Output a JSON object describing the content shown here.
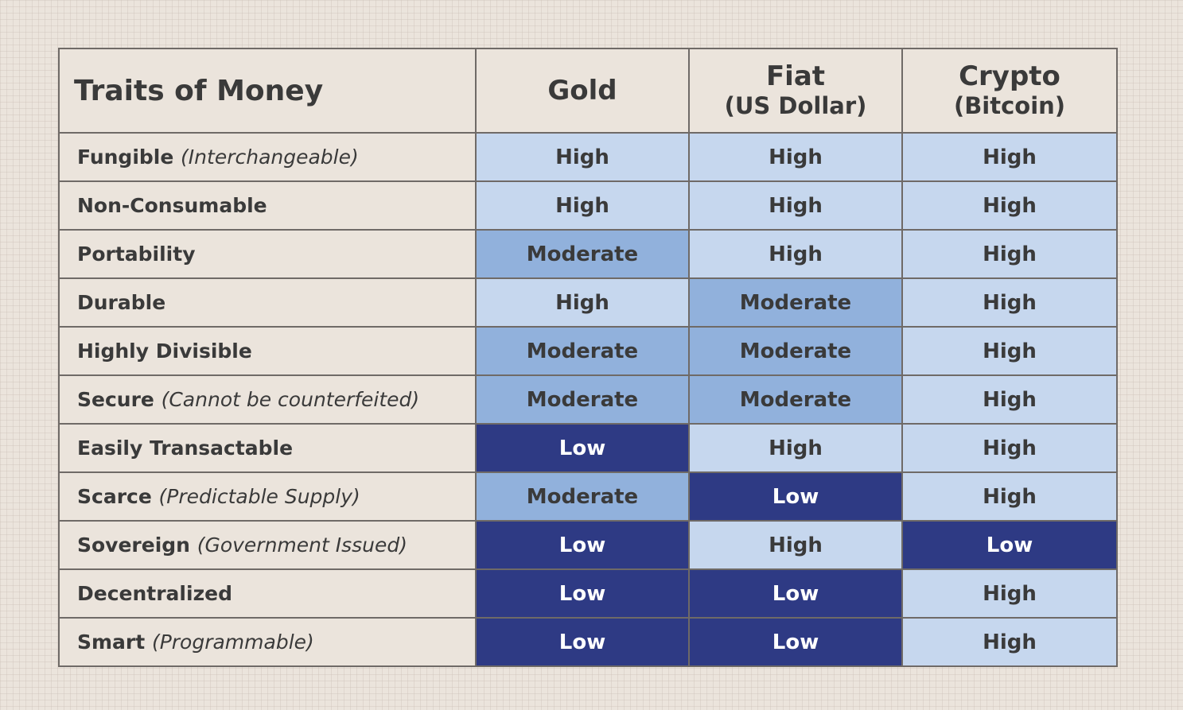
{
  "table": {
    "title": "Traits of Money",
    "columns": [
      {
        "name": "Gold",
        "sub": ""
      },
      {
        "name": "Fiat",
        "sub": "(US Dollar)"
      },
      {
        "name": "Crypto",
        "sub": "(Bitcoin)"
      }
    ],
    "rows": [
      {
        "trait": "Fungible",
        "note": "(Interchangeable)",
        "values": [
          "High",
          "High",
          "High"
        ]
      },
      {
        "trait": "Non-Consumable",
        "note": "",
        "values": [
          "High",
          "High",
          "High"
        ]
      },
      {
        "trait": "Portability",
        "note": "",
        "values": [
          "Moderate",
          "High",
          "High"
        ]
      },
      {
        "trait": "Durable",
        "note": "",
        "values": [
          "High",
          "Moderate",
          "High"
        ]
      },
      {
        "trait": "Highly Divisible",
        "note": "",
        "values": [
          "Moderate",
          "Moderate",
          "High"
        ]
      },
      {
        "trait": "Secure",
        "note": "(Cannot be counterfeited)",
        "values": [
          "Moderate",
          "Moderate",
          "High"
        ]
      },
      {
        "trait": "Easily Transactable",
        "note": "",
        "values": [
          "Low",
          "High",
          "High"
        ]
      },
      {
        "trait": "Scarce",
        "note": "(Predictable Supply)",
        "values": [
          "Moderate",
          "Low",
          "High"
        ]
      },
      {
        "trait": "Sovereign",
        "note": "(Government Issued)",
        "values": [
          "Low",
          "High",
          "Low"
        ]
      },
      {
        "trait": "Decentralized",
        "note": "",
        "values": [
          "Low",
          "Low",
          "High"
        ]
      },
      {
        "trait": "Smart",
        "note": "(Programmable)",
        "values": [
          "Low",
          "Low",
          "High"
        ]
      }
    ]
  },
  "colors": {
    "background": "#ebe4dc",
    "high": "#c6d7ee",
    "moderate": "#91b1dc",
    "low": "#2e3a84",
    "border": "#6f6a67",
    "text": "#3a3a3a"
  }
}
